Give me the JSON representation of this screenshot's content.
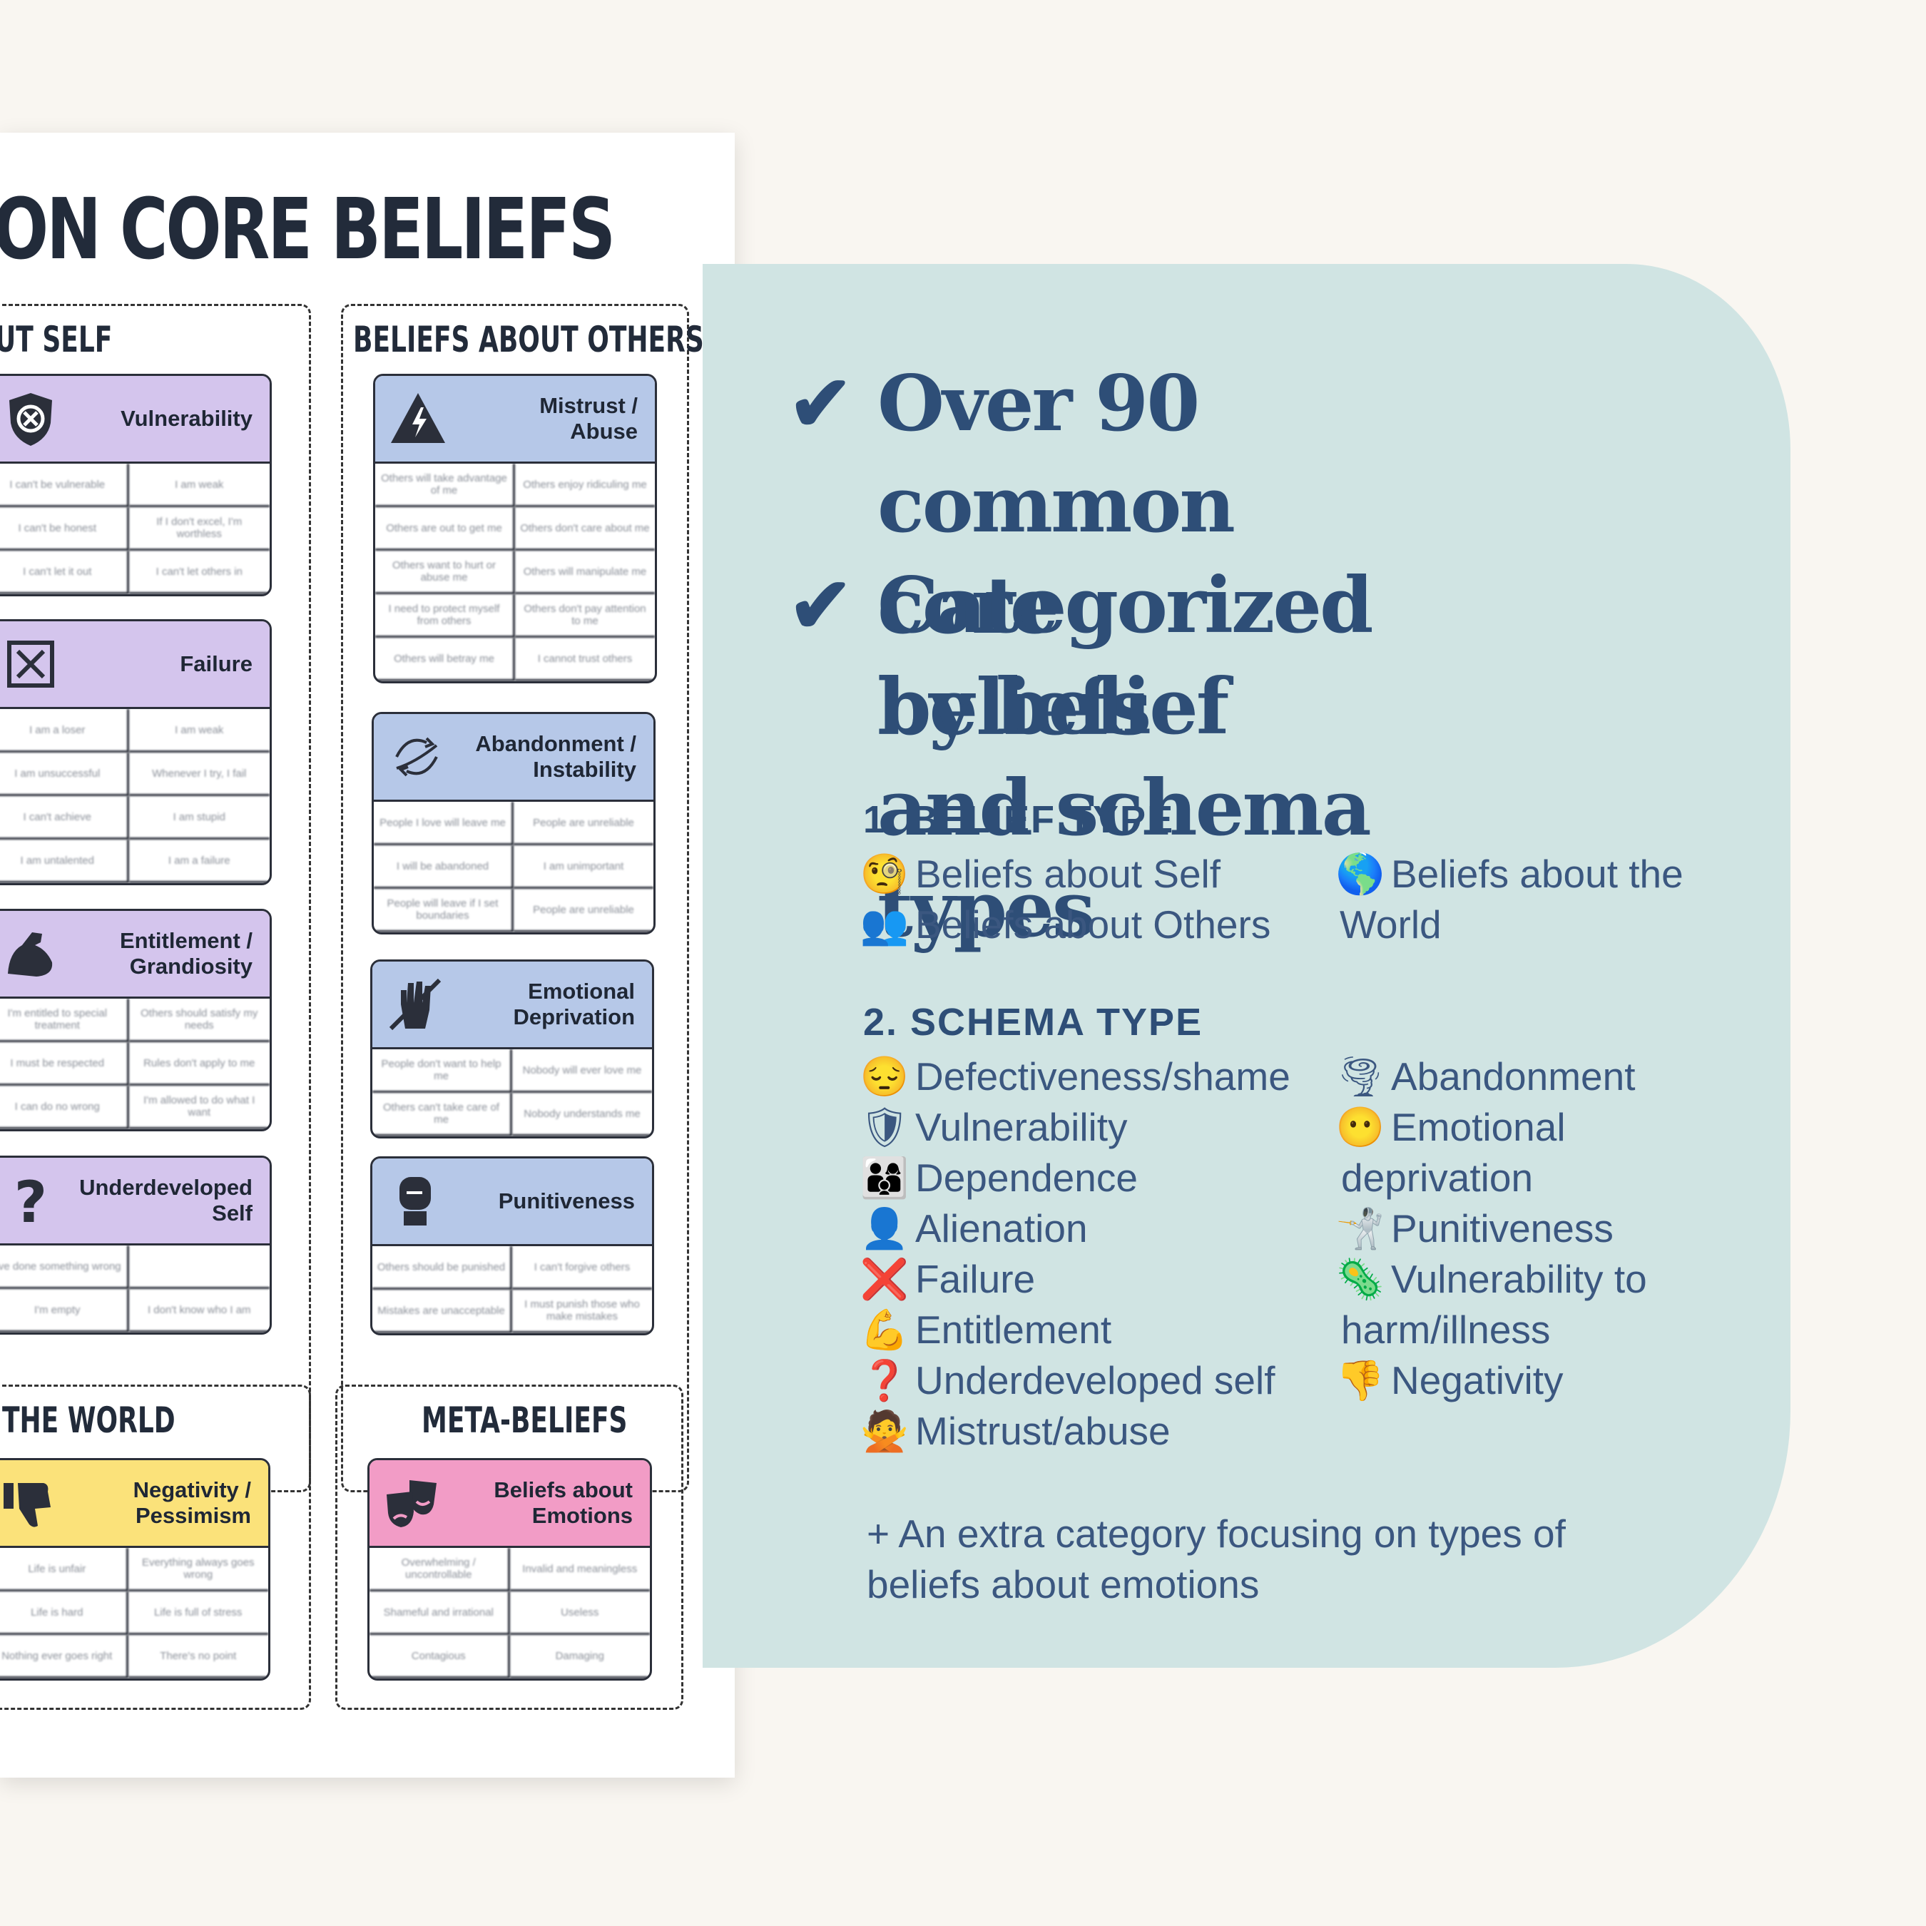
{
  "colors": {
    "background": "#f9f6f1",
    "panel": "#d0e4e3",
    "heading": "#2e4e77",
    "self_cards": "#d4c5ed",
    "others_cards": "#b6c8e8",
    "world_cards": "#fbe27a",
    "meta_cards": "#f29cc6"
  },
  "sheet": {
    "title": "ON CORE BELIEFS",
    "sections": {
      "self": "UT SELF",
      "others": "BELIEFS ABOUT OTHERS",
      "world": "THE WORLD",
      "meta": "META-BELIEFS"
    },
    "cards": [
      {
        "label": "Vulnerability",
        "icon": "shield-x-icon",
        "rows": [
          [
            "I can't be vulnerable",
            "I am weak"
          ],
          [
            "I can't be honest",
            "If I don't excel, I'm worthless"
          ],
          [
            "I can't let it out",
            "I can't let others in"
          ]
        ]
      },
      {
        "label": "Failure",
        "icon": "x-box-icon",
        "rows": [
          [
            "I am a loser",
            "I am weak"
          ],
          [
            "I am unsuccessful",
            "Whenever I try, I fail"
          ],
          [
            "I can't achieve",
            "I am stupid"
          ],
          [
            "I am untalented",
            "I am a failure"
          ]
        ]
      },
      {
        "label": "Entitlement /\nGrandiosity",
        "icon": "flexed-arm-icon",
        "rows": [
          [
            "I'm entitled to special treatment",
            "Others should satisfy my needs"
          ],
          [
            "I must be respected",
            "Rules don't apply to me"
          ],
          [
            "I can do no wrong",
            "I'm allowed to do what I want"
          ]
        ]
      },
      {
        "label": "Underdeveloped\nSelf",
        "icon": "question-mark-icon",
        "rows": [
          [
            "I've done something wrong",
            ""
          ],
          [
            "I'm empty",
            "I don't know who I am"
          ]
        ]
      },
      {
        "label": "Mistrust /\nAbuse",
        "icon": "warning-bolt-icon",
        "rows": [
          [
            "Others will take advantage of me",
            "Others enjoy ridiculing me"
          ],
          [
            "Others are out to get me",
            "Others don't care about me"
          ],
          [
            "Others want to hurt or abuse me",
            "Others will manipulate me"
          ],
          [
            "I need to protect myself from others",
            "Others don't pay attention to me"
          ],
          [
            "Others will betray me",
            "I cannot trust others"
          ]
        ]
      },
      {
        "label": "Abandonment /\nInstability",
        "icon": "tornado-arrows-icon",
        "rows": [
          [
            "People I love will leave me",
            "People are unreliable"
          ],
          [
            "I will be abandoned",
            "I am unimportant"
          ],
          [
            "People will leave if I set boundaries",
            "People are unreliable"
          ]
        ]
      },
      {
        "label": "Emotional\nDeprivation",
        "icon": "no-hand-icon",
        "rows": [
          [
            "People don't want to help me",
            "Nobody will ever love me"
          ],
          [
            "Others can't take care of me",
            "Nobody understands me"
          ]
        ]
      },
      {
        "label": "Punitiveness",
        "icon": "boxing-glove-icon",
        "rows": [
          [
            "Others should be punished",
            "I can't forgive others"
          ],
          [
            "Mistakes are unacceptable",
            "I must punish those who make mistakes"
          ]
        ]
      },
      {
        "label": "Negativity /\nPessimism",
        "icon": "thumbs-down-icon",
        "rows": [
          [
            "Life is unfair",
            "Everything always goes wrong"
          ],
          [
            "Life is hard",
            "Life is full of stress"
          ],
          [
            "Nothing ever goes right",
            "There's no point"
          ]
        ]
      },
      {
        "label": "Beliefs about\nEmotions",
        "icon": "theater-masks-icon",
        "rows": [
          [
            "Overwhelming / uncontrollable",
            "Invalid and meaningless"
          ],
          [
            "Shameful and irrational",
            "Useless"
          ],
          [
            "Contagious",
            "Damaging"
          ]
        ]
      }
    ]
  },
  "panel": {
    "check_icon": "✔",
    "headline_1": "Over 90 common\ncore beliefs",
    "headline_2": "Categorized by belief\nand schema types",
    "belief_type_title": "1. BELIEF TYPE",
    "belief_types": [
      {
        "emoji": "🧐",
        "label": "Beliefs about Self"
      },
      {
        "emoji": "👥",
        "label": "Beliefs about Others"
      },
      {
        "emoji": "🌎",
        "label": "Beliefs about the"
      },
      {
        "emoji": "",
        "label": "World"
      }
    ],
    "schema_type_title": "2. SCHEMA TYPE",
    "schema_left": [
      {
        "emoji": "😔",
        "label": "Defectiveness/shame"
      },
      {
        "emoji": "🛡",
        "label": "Vulnerability"
      },
      {
        "emoji": "👨‍👩‍👦",
        "label": "Dependence"
      },
      {
        "emoji": "👤",
        "label": "Alienation"
      },
      {
        "emoji": "❌",
        "label": "Failure"
      },
      {
        "emoji": "💪",
        "label": "Entitlement"
      },
      {
        "emoji": "❓",
        "label": "Underdeveloped self"
      },
      {
        "emoji": "🙅",
        "label": "Mistrust/abuse"
      }
    ],
    "schema_right": [
      {
        "emoji": "🌪",
        "label": "Abandonment"
      },
      {
        "emoji": "😶",
        "label": "Emotional"
      },
      {
        "emoji": "",
        "label": "deprivation"
      },
      {
        "emoji": "🤺",
        "label": "Punitiveness"
      },
      {
        "emoji": "🦠",
        "label": "Vulnerability to"
      },
      {
        "emoji": "",
        "label": "harm/illness"
      },
      {
        "emoji": "👎",
        "label": "Negativity"
      }
    ],
    "extra": "+ An extra category focusing on types of beliefs about emotions"
  }
}
